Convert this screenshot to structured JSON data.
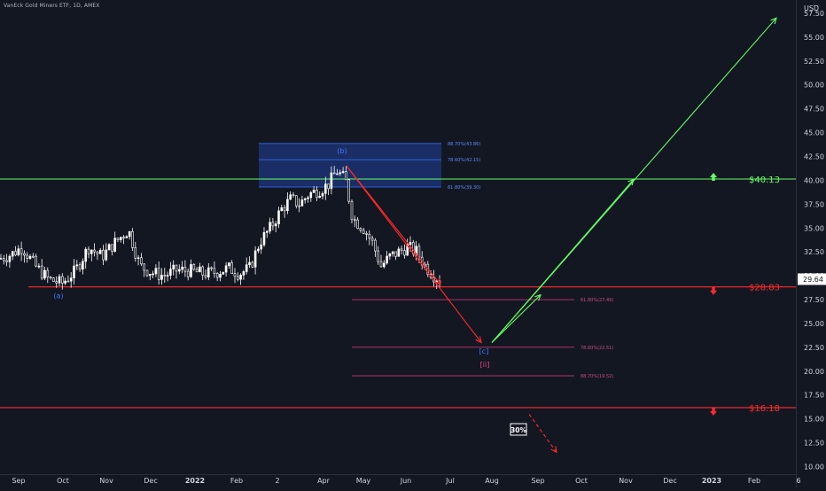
{
  "header": {
    "title": "VanEck Gold Miners ETF, 1D, AMEX",
    "unit": "USD"
  },
  "colors": {
    "background": "#131722",
    "axis_text": "#d1d4dc",
    "candle": "#ffffff",
    "green": "#66ff66",
    "red": "#ff2a2a",
    "blue_zone": "#1e3a8a",
    "blue_line": "#2f5fd6",
    "blue_text": "#3b7bff",
    "magenta_zone": "#4a1430",
    "magenta_line": "#b3306a",
    "magenta_text": "#ff3d8a"
  },
  "chart_data": {
    "type": "candlestick",
    "ylim": [
      10,
      57
    ],
    "y_ticks": [
      "57.50",
      "55.00",
      "52.50",
      "50.00",
      "47.50",
      "45.00",
      "42.50",
      "40.00",
      "37.50",
      "35.00",
      "32.50",
      "30.00",
      "27.50",
      "25.00",
      "22.50",
      "20.00",
      "17.50",
      "15.00",
      "12.50",
      "10.00"
    ],
    "x_ticks": [
      "Sep",
      "Oct",
      "Nov",
      "Dec",
      "2022",
      "Feb",
      "2",
      "Apr",
      "May",
      "Jun",
      "Jul",
      "Aug",
      "Sep",
      "Oct",
      "Nov",
      "Dec",
      "2023",
      "Feb",
      "6"
    ],
    "last_price": "29.64",
    "price_series_approx": [
      [
        0,
        31.8
      ],
      [
        12,
        32.2
      ],
      [
        25,
        33.0
      ],
      [
        40,
        31.0
      ],
      [
        55,
        29.6
      ],
      [
        70,
        29.2
      ],
      [
        85,
        30.5
      ],
      [
        100,
        33.0
      ],
      [
        115,
        32.0
      ],
      [
        130,
        33.5
      ],
      [
        145,
        34.8
      ],
      [
        158,
        31.0
      ],
      [
        172,
        30.3
      ],
      [
        185,
        30.0
      ],
      [
        200,
        30.6
      ],
      [
        215,
        30.5
      ],
      [
        230,
        30.2
      ],
      [
        245,
        30.4
      ],
      [
        258,
        30.8
      ],
      [
        270,
        30.2
      ],
      [
        282,
        30.8
      ],
      [
        293,
        33.5
      ],
      [
        305,
        35.0
      ],
      [
        318,
        37.0
      ],
      [
        328,
        38.0
      ],
      [
        338,
        37.5
      ],
      [
        348,
        38.5
      ],
      [
        360,
        39.0
      ],
      [
        370,
        39.5
      ],
      [
        380,
        41.0
      ],
      [
        390,
        40.0
      ],
      [
        398,
        36.0
      ],
      [
        410,
        35.0
      ],
      [
        420,
        33.5
      ],
      [
        430,
        31.0
      ],
      [
        440,
        32.0
      ],
      [
        450,
        32.5
      ],
      [
        460,
        33.0
      ],
      [
        470,
        32.5
      ],
      [
        480,
        31.0
      ],
      [
        490,
        30.0
      ],
      [
        498,
        29.5
      ]
    ],
    "levels": [
      {
        "label": "$40.13",
        "value": 40.13,
        "color": "green",
        "arrow": "up"
      },
      {
        "label": "$28.83",
        "value": 28.83,
        "color": "red",
        "arrow": "down"
      },
      {
        "label": "$16.18",
        "value": 16.18,
        "color": "red",
        "arrow": "down"
      }
    ],
    "fib_upper": {
      "range": [
        39.3,
        43.86
      ],
      "lines": [
        {
          "label": "88.70%(43.86)",
          "value": 43.86
        },
        {
          "label": "78.60%(42.15)",
          "value": 42.15
        },
        {
          "label": "61.80%(39.30)",
          "value": 39.3
        }
      ]
    },
    "fib_lower": {
      "range": [
        19.52,
        27.49
      ],
      "lines": [
        {
          "label": "61.80%(27.49)",
          "value": 27.49
        },
        {
          "label": "78.60%(22.51)",
          "value": 22.51
        },
        {
          "label": "88.70%(19.52)",
          "value": 19.52
        }
      ]
    },
    "wave_labels": [
      {
        "text": "(a)",
        "value": 28.0
      },
      {
        "text": "(b)",
        "value": 43.2
      },
      {
        "text": "[c]",
        "value": 22.2
      },
      {
        "text": "[ii]",
        "value": 20.8
      }
    ],
    "probability_label": "30%",
    "projections": [
      {
        "name": "red-down",
        "from_value": 41.5,
        "to_value": 23.0
      },
      {
        "name": "green-up",
        "from_value": 23.0,
        "to_value": 57.0
      },
      {
        "name": "red-alt",
        "from_value": 15.5,
        "to_value": 11.5
      }
    ]
  }
}
